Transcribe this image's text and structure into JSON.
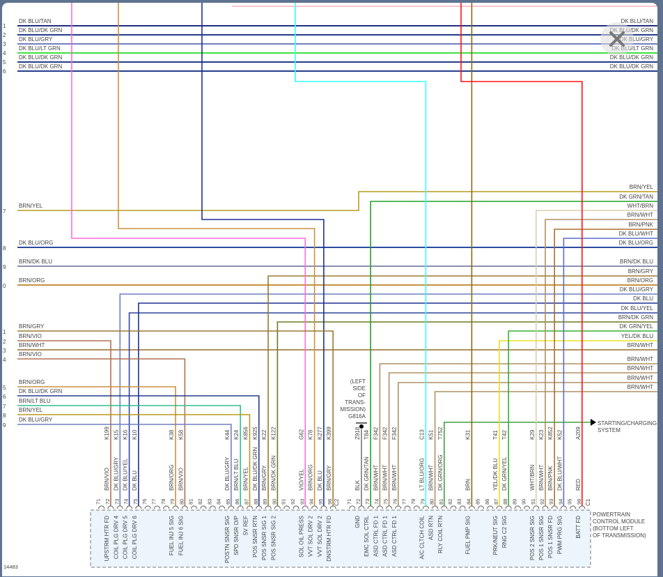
{
  "figure_id": "14483",
  "module": {
    "label_lines": [
      "POWERTRAIN",
      "CONTROL MODULE",
      "(BOTTOM LEFT",
      "OF TRANSMISSION)"
    ]
  },
  "ground": {
    "label_lines": [
      "(LEFT",
      "SIDE",
      "OF",
      "TRANS-",
      "MISSION)",
      "G816A"
    ]
  },
  "starting_charging": {
    "label_lines": [
      "STARTING/CHARGING",
      "SYSTEM"
    ]
  },
  "colors": {
    "DK BLU": "#1f2f8f",
    "DK BLU/TAN": "#1f2f7f",
    "DK BLU/DK GRN": "#233c8a",
    "DK BLU/GRY": "#6f7fc0",
    "DK BLU/LT GRN": "#3ee03e",
    "DK BLU/ORG": "#2a4aa0",
    "DK BLU/YEL": "#2d45a0",
    "DK BLU/WHT": "#5a6ccc",
    "BRN/YEL": "#b89a1a",
    "BRN/DK BLU": "#8a8fb0",
    "BRN/ORG": "#c8923e",
    "BRN/GRY": "#9a7a30",
    "BRN/VIO": "#b07050",
    "BRN/WHT": "#b09060",
    "BRN/LT BLU": "#2dbf8f",
    "BRN/DK GRN": "#6a7a20",
    "BRN/PNK": "#a8702a",
    "BRN": "#8b6914",
    "DK GRN/TAN": "#22a022",
    "DK GRN/YEL": "#30b030",
    "DK GRN/ORG": "#40a040",
    "YEL/DK BLU": "#e8e020",
    "WHT/BRN": "#d8cfb0",
    "VIO/YEL": "#ff6ad5",
    "LT BLU/ORG": "#33ffff",
    "RED": "#ff1010",
    "BLK": "#777777",
    "PNK": "#ffb0c0"
  },
  "left_wires": [
    {
      "num": "1",
      "label": "DK BLU/TAN"
    },
    {
      "num": "2",
      "label": "DK BLU/DK GRN"
    },
    {
      "num": "3",
      "label": "DK BLU/GRY"
    },
    {
      "num": "4",
      "label": "DK BLU/LT GRN"
    },
    {
      "num": "5",
      "label": "DK BLU/DK GRN"
    },
    {
      "num": "6",
      "label": "DK BLU/DK GRN"
    },
    {
      "num": "7",
      "label": "BRN/YEL"
    },
    {
      "num": "8",
      "label": "DK BLU/ORG"
    },
    {
      "num": "9",
      "label": "BRN/DK BLU"
    },
    {
      "num": "0",
      "label": "BRN/ORG"
    },
    {
      "num": "1",
      "label": "BRN/GRY"
    },
    {
      "num": "2",
      "label": "BRN/VIO"
    },
    {
      "num": "3",
      "label": "BRN/WHT"
    },
    {
      "num": "4",
      "label": "BRN/VIO"
    },
    {
      "num": "5",
      "label": "BRN/ORG"
    },
    {
      "num": "6",
      "label": "DK BLU/DK GRN"
    },
    {
      "num": "7",
      "label": "BRN/LT BLU"
    },
    {
      "num": "8",
      "label": "BRN/YEL"
    },
    {
      "num": "9",
      "label": "DK BLU/GRY"
    }
  ],
  "right_wires": [
    "DK BLU/TAN",
    "DK BLU/DK GRN",
    "DK BLU/GRY",
    "DK BLU/LT GRN",
    "DK BLU/DK GRN",
    "DK BLU/DK GRN",
    "BRN/YEL",
    "DK GRN/TAN",
    "WHT/BRN",
    "BRN/WHT",
    "BRN/PNK",
    "DK BLU/WHT",
    "DK BLU/ORG",
    "BRN/DK BLU",
    "BRN/GRY",
    "BRN/ORG",
    "DK BLU/GRY",
    "DK BLU",
    "DK BLU/YEL",
    "BRN/DK GRN",
    "DK GRN/YEL",
    "YEL/DK BLU",
    "BRN/WHT",
    "BRN/WHT",
    "BRN/WHT",
    "BRN/WHT",
    "BRN/WHT"
  ],
  "connectors": [
    {
      "name": "C2",
      "pins": [
        {
          "pin": "71"
        },
        {
          "pin": "72",
          "circuit": "K199",
          "color": "BRN/VIO",
          "func": "UPSTRM HTR FD"
        },
        {
          "pin": "73",
          "circuit": "K15",
          "color": "DK BLU/GRY",
          "func": "COIL PLG DRV 4"
        },
        {
          "pin": "74",
          "circuit": "K16",
          "color": "DK BLU/YEL",
          "func": "COIL PLG DRV 5"
        },
        {
          "pin": "75",
          "circuit": "K10",
          "color": "DK BLU",
          "func": "COIL PLG DRV 6"
        },
        {
          "pin": "76"
        },
        {
          "pin": "77"
        },
        {
          "pin": "78"
        },
        {
          "pin": "79",
          "circuit": "K38",
          "color": "BRN/ORG",
          "func": "FUEL INJ 5 SIG"
        },
        {
          "pin": "80",
          "circuit": "K58",
          "color": "BRN/VIO",
          "func": "FUEL INJ 6 SIG"
        },
        {
          "pin": "81"
        },
        {
          "pin": "82"
        },
        {
          "pin": "83"
        },
        {
          "pin": "84"
        },
        {
          "pin": "85",
          "circuit": "K44",
          "color": "DK BLU/GRY",
          "func": "POSTN SNSR SIG"
        },
        {
          "pin": "86",
          "circuit": "K24",
          "color": "BRN/LT BLU",
          "func": "SPD SNSR O/P"
        },
        {
          "pin": "87",
          "circuit": "K856",
          "color": "BRN/YEL",
          "func": "5V REF"
        },
        {
          "pin": "88",
          "circuit": "K925",
          "color": "DK BLU/DK GRN",
          "func": "POS SNSR RTN"
        },
        {
          "pin": "89",
          "circuit": "K22",
          "color": "BRN/GRY",
          "func": "POS SNSR SIG 1"
        },
        {
          "pin": "90",
          "circuit": "K122",
          "color": "BRN/DK GRN",
          "func": "POS SNSR SIG 2"
        },
        {
          "pin": "91"
        },
        {
          "pin": "92"
        },
        {
          "pin": "93",
          "circuit": "G62",
          "color": "VIO/YEL",
          "func": "SOL OIL PRESS"
        },
        {
          "pin": "94",
          "circuit": "K78",
          "color": "BRN/ORG",
          "func": "VVT SOL DRV 2"
        },
        {
          "pin": "95",
          "circuit": "K277",
          "color": "DK BLU",
          "func": "VVT SOL DRV 2"
        },
        {
          "pin": "96",
          "circuit": "K399",
          "color": "BRN/GRY",
          "func": "DNSTRM HTR FD"
        }
      ]
    },
    {
      "name": "C1",
      "pins": [
        {
          "pin": "71"
        },
        {
          "pin": "72",
          "circuit": "Z918",
          "color": "BLK",
          "func": "GND"
        },
        {
          "pin": "73",
          "circuit": "T84",
          "color": "DK GRN/TAN",
          "func": "EMC SOL CTRL"
        },
        {
          "pin": "74",
          "circuit": "F342",
          "color": "BRN/WHT",
          "func": "ASD CTRL FD 1"
        },
        {
          "pin": "75",
          "circuit": "F342",
          "color": "BRN/WHT",
          "func": "ASD CTRL FD 1"
        },
        {
          "pin": "76",
          "circuit": "F342",
          "color": "BRN/WHT",
          "func": "ASD CTRL FD 1"
        },
        {
          "pin": "77"
        },
        {
          "pin": "78"
        },
        {
          "pin": "79",
          "circuit": "C13",
          "color": "LT BLU/ORG",
          "func": "A/C CLTCH COIL"
        },
        {
          "pin": "80",
          "circuit": "K51",
          "color": "BRN/WHT",
          "func": "ASD RTN"
        },
        {
          "pin": "81",
          "circuit": "T752",
          "color": "DK GRN/ORG",
          "func": "RLY COIL RTN"
        },
        {
          "pin": "82"
        },
        {
          "pin": "83"
        },
        {
          "pin": "84",
          "circuit": "K31",
          "color": "BRN",
          "func": "FUEL PMP SIG"
        },
        {
          "pin": "85"
        },
        {
          "pin": "86"
        },
        {
          "pin": "87",
          "circuit": "T41",
          "color": "YEL/DK BLU",
          "func": "PRK/NEUT SIG"
        },
        {
          "pin": "88",
          "circuit": "T42",
          "color": "DK GRN/YEL",
          "func": "RNG C2 SIG"
        },
        {
          "pin": "89"
        },
        {
          "pin": "90"
        },
        {
          "pin": "91",
          "circuit": "K29",
          "color": "WHT/BRN",
          "func": "POS 2 SNSR SIG"
        },
        {
          "pin": "92",
          "circuit": "K23",
          "color": "BRN/WHT",
          "func": "POS 1 SNSR SIG"
        },
        {
          "pin": "93",
          "circuit": "K852",
          "color": "BRN/PNK",
          "func": "POS 1 SNSR FD"
        },
        {
          "pin": "94",
          "circuit": "K52",
          "color": "DK BLU/WHT",
          "func": "PWM PRG SIG"
        },
        {
          "pin": "95"
        },
        {
          "pin": "96",
          "circuit": "A209",
          "color": "RED",
          "func": "BATT FD"
        }
      ]
    }
  ]
}
